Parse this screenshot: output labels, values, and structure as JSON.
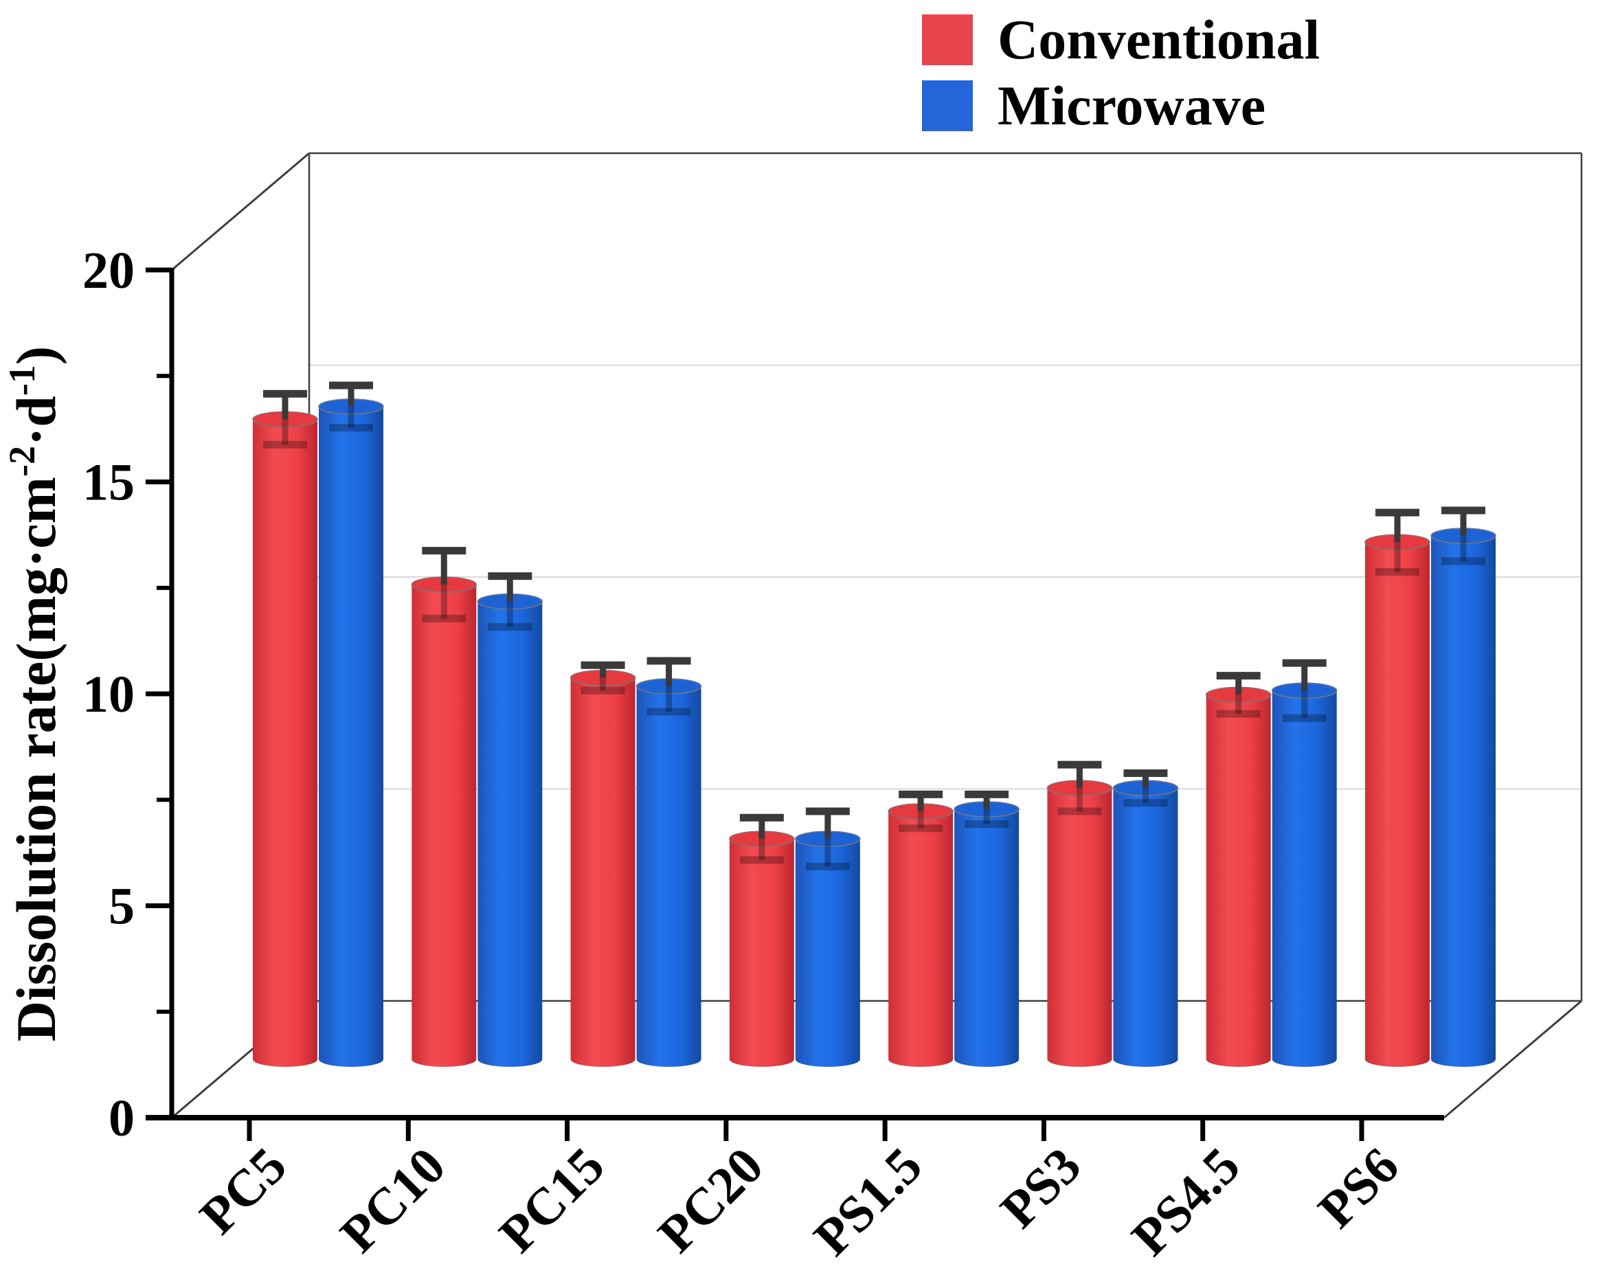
{
  "figure": {
    "kind": "3D cylinder bar chart",
    "background": "#ffffff"
  },
  "legend": {
    "position": "top-right",
    "items": [
      {
        "label": "Conventional",
        "color": "#e8464c"
      },
      {
        "label": "Microwave",
        "color": "#2366d9"
      }
    ]
  },
  "y_axis": {
    "label_plain": "Dissolution rate(mg·cm-2·d-1)",
    "label_parts": [
      {
        "text": "Dissolution rate(mg·cm",
        "sup": false
      },
      {
        "text": "-2",
        "sup": true
      },
      {
        "text": "·d",
        "sup": false
      },
      {
        "text": "-1",
        "sup": true
      },
      {
        "text": ")",
        "sup": false
      }
    ],
    "major_ticks": [
      0,
      5,
      10,
      15,
      20
    ],
    "minor_ticks": [
      2.5,
      7.5,
      12.5,
      17.5
    ],
    "range": [
      0,
      20
    ]
  },
  "x_axis": {
    "categories": [
      "PC5",
      "PC10",
      "PC15",
      "PC20",
      "PS1.5",
      "PS3",
      "PS4.5",
      "PS6"
    ]
  },
  "chart_data": {
    "type": "bar",
    "subtype": "3d-cylinder",
    "title": "",
    "xlabel": "",
    "ylabel": "Dissolution rate(mg·cm-2·d-1)",
    "ylim": [
      0,
      20
    ],
    "grid": true,
    "gridlines_at": [
      5,
      10,
      15
    ],
    "legend_position": "top-right",
    "categories": [
      "PC5",
      "PC10",
      "PC15",
      "PC20",
      "PS1.5",
      "PS3",
      "PS4.5",
      "PS6"
    ],
    "series": [
      {
        "name": "Conventional",
        "color": "#e8464c",
        "values": [
          15.1,
          11.2,
          9.0,
          5.2,
          5.85,
          6.4,
          8.6,
          12.2
        ],
        "errors": [
          0.6,
          0.8,
          0.3,
          0.5,
          0.4,
          0.55,
          0.45,
          0.7
        ]
      },
      {
        "name": "Microwave",
        "color": "#2366d9",
        "values": [
          15.4,
          10.8,
          8.8,
          5.2,
          5.9,
          6.4,
          8.7,
          12.35
        ],
        "errors": [
          0.5,
          0.6,
          0.6,
          0.65,
          0.35,
          0.35,
          0.65,
          0.6
        ]
      }
    ]
  },
  "style": {
    "axis_color": "#000000",
    "frame_color": "#3f3f3f",
    "grid_color": "#d9d9d9",
    "error_bar_color": "#3a3a3a",
    "bar_red_gradient": [
      "#d02f36",
      "#f24b51",
      "#ee4046",
      "#bb2630"
    ],
    "bar_blue_gradient": [
      "#1d55b8",
      "#2373ea",
      "#1c66dd",
      "#134a9e"
    ],
    "red_top": "#e73940",
    "blue_top": "#1e63d6",
    "top_ellipse_stroke": "#777777"
  }
}
